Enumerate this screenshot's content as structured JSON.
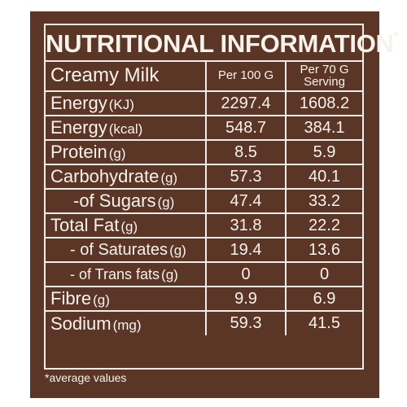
{
  "title": "NUTRITIONAL INFORMATION",
  "title_mark": "*",
  "product": "Creamy Milk",
  "columns": {
    "per100": "Per 100 G",
    "serving_line1": "Per 70 G",
    "serving_line2": "Serving"
  },
  "rows": [
    {
      "label": "Energy",
      "unit": "(KJ)",
      "per100": "2297.4",
      "serving": "1608.2"
    },
    {
      "label": "Energy",
      "unit": "(kcal)",
      "per100": "548.7",
      "serving": "384.1"
    },
    {
      "label": "Protein",
      "unit": "(g)",
      "per100": "8.5",
      "serving": "5.9"
    },
    {
      "label": "Carbohydrate",
      "unit": "(g)",
      "per100": "57.3",
      "serving": "40.1"
    },
    {
      "label": "-of Sugars",
      "unit": "(g)",
      "per100": "47.4",
      "serving": "33.2"
    },
    {
      "label": "Total Fat",
      "unit": "(g)",
      "per100": "31.8",
      "serving": "22.2"
    },
    {
      "label": "- of Saturates",
      "unit": "(g)",
      "per100": "19.4",
      "serving": "13.6"
    },
    {
      "label": "- of Trans fats",
      "unit": "(g)",
      "per100": "0",
      "serving": "0"
    },
    {
      "label": "Fibre",
      "unit": "(g)",
      "per100": "9.9",
      "serving": "6.9"
    },
    {
      "label": "Sodium",
      "unit": "(mg)",
      "per100": "59.3",
      "serving": "41.5"
    }
  ],
  "footnote": "*average values",
  "colors": {
    "background": "#5b3526",
    "text": "#f7f2ec"
  }
}
